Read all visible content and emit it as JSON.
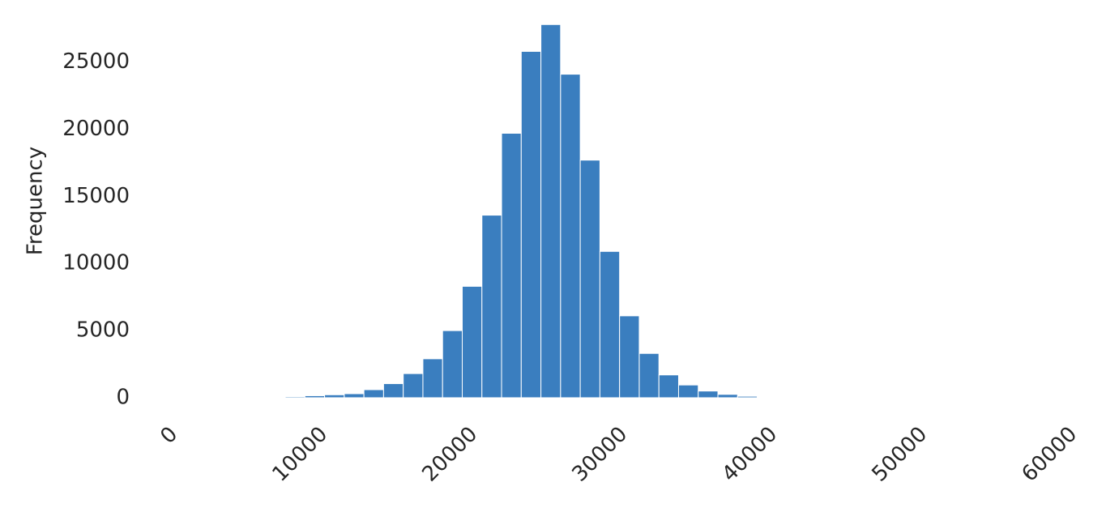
{
  "chart_data": {
    "type": "histogram",
    "y_label": "Frequency",
    "color": "#3a7ebf",
    "bins": [
      2160,
      3472,
      4784,
      6096,
      7408,
      8720,
      10032,
      11344,
      12656,
      13968,
      15280,
      16592,
      17904,
      19216,
      20528,
      21840,
      23152,
      24464,
      25776,
      27088,
      28400,
      29712,
      31024,
      32336,
      33648,
      34960,
      36272,
      37584,
      38896,
      40208,
      41520,
      42832,
      44144,
      45456,
      46768,
      48080
    ],
    "counts": [
      5,
      10,
      20,
      40,
      80,
      150,
      220,
      300,
      600,
      1050,
      1800,
      2900,
      5000,
      8300,
      13600,
      19700,
      25800,
      27800,
      24100,
      17700,
      10900,
      6100,
      3300,
      1700,
      950,
      500,
      250,
      110,
      60,
      30,
      15,
      8,
      5,
      3,
      2
    ],
    "xlim": [
      0,
      60000
    ],
    "xticks": [
      0,
      10000,
      20000,
      30000,
      40000,
      50000,
      60000
    ],
    "ylim": [
      -1150,
      28300
    ],
    "yticks": [
      0,
      5000,
      10000,
      15000,
      20000,
      25000
    ]
  }
}
